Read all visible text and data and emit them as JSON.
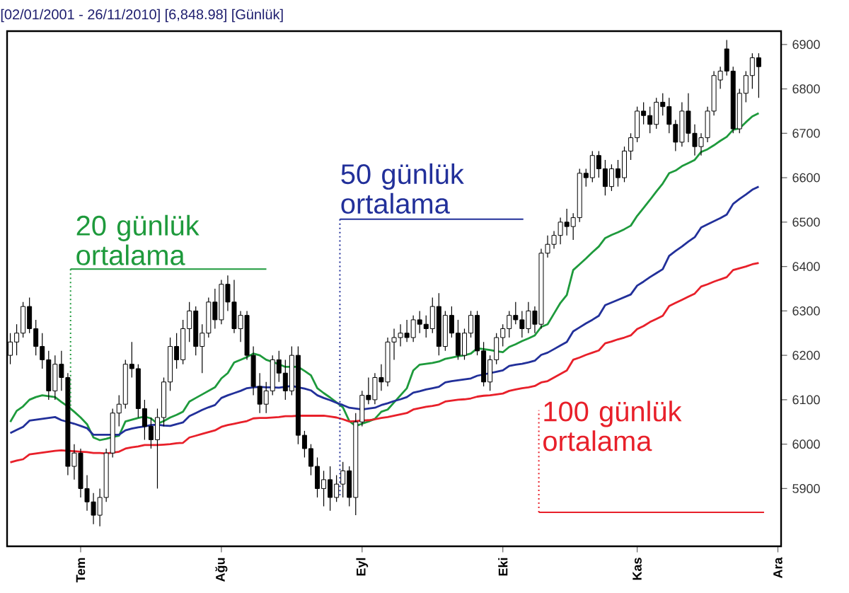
{
  "chart_data": {
    "type": "candlestick",
    "title": "[02/01/2001 - 26/11/2010] [6,848.98] [Günlük]",
    "categories": [
      null,
      null,
      null,
      null,
      null,
      null,
      null,
      null,
      null,
      null,
      null,
      "Tem",
      null,
      null,
      null,
      null,
      null,
      null,
      null,
      null,
      null,
      null,
      null,
      null,
      null,
      null,
      null,
      null,
      null,
      null,
      null,
      null,
      null,
      "Ağu",
      null,
      null,
      null,
      null,
      null,
      null,
      null,
      null,
      null,
      null,
      null,
      null,
      null,
      null,
      null,
      null,
      null,
      null,
      null,
      null,
      null,
      "Eyl",
      null,
      null,
      null,
      null,
      null,
      null,
      null,
      null,
      null,
      null,
      null,
      null,
      null,
      null,
      null,
      null,
      null,
      null,
      null,
      null,
      null,
      "Eki",
      null,
      null,
      null,
      null,
      null,
      null,
      null,
      null,
      null,
      null,
      null,
      null,
      null,
      null,
      null,
      null,
      null,
      null,
      null,
      null,
      "Kas",
      null,
      null,
      null,
      null,
      null,
      null,
      null,
      null,
      null,
      null,
      null,
      null,
      null,
      null,
      null,
      null,
      null,
      null,
      null,
      null,
      null,
      "Ara"
    ],
    "ohlc": [
      [
        6200,
        6250,
        6180,
        6230
      ],
      [
        6230,
        6270,
        6200,
        6250
      ],
      [
        6250,
        6320,
        6240,
        6310
      ],
      [
        6310,
        6330,
        6250,
        6260
      ],
      [
        6260,
        6280,
        6200,
        6220
      ],
      [
        6220,
        6250,
        6170,
        6190
      ],
      [
        6190,
        6210,
        6100,
        6120
      ],
      [
        6120,
        6200,
        6100,
        6180
      ],
      [
        6180,
        6210,
        6120,
        6150
      ],
      [
        6150,
        6160,
        5930,
        5950
      ],
      [
        5950,
        6000,
        5920,
        5980
      ],
      [
        5980,
        5990,
        5880,
        5900
      ],
      [
        5900,
        5930,
        5850,
        5870
      ],
      [
        5870,
        5890,
        5820,
        5840
      ],
      [
        5840,
        5900,
        5815,
        5880
      ],
      [
        5880,
        5990,
        5870,
        5980
      ],
      [
        5980,
        6080,
        5970,
        6070
      ],
      [
        6070,
        6110,
        6040,
        6090
      ],
      [
        6090,
        6190,
        6080,
        6180
      ],
      [
        6180,
        6230,
        6150,
        6170
      ],
      [
        6170,
        6180,
        6060,
        6080
      ],
      [
        6080,
        6100,
        6010,
        6040
      ],
      [
        6040,
        6060,
        5990,
        6010
      ],
      [
        6010,
        6080,
        5900,
        6060
      ],
      [
        6060,
        6150,
        6040,
        6140
      ],
      [
        6140,
        6240,
        6120,
        6220
      ],
      [
        6220,
        6250,
        6170,
        6190
      ],
      [
        6190,
        6280,
        6180,
        6260
      ],
      [
        6260,
        6320,
        6230,
        6300
      ],
      [
        6300,
        6310,
        6200,
        6220
      ],
      [
        6220,
        6270,
        6160,
        6250
      ],
      [
        6250,
        6330,
        6240,
        6320
      ],
      [
        6320,
        6350,
        6260,
        6280
      ],
      [
        6280,
        6370,
        6270,
        6360
      ],
      [
        6360,
        6380,
        6300,
        6320
      ],
      [
        6320,
        6370,
        6250,
        6260
      ],
      [
        6260,
        6300,
        6230,
        6290
      ],
      [
        6290,
        6300,
        6190,
        6200
      ],
      [
        6200,
        6220,
        6110,
        6130
      ],
      [
        6130,
        6160,
        6070,
        6090
      ],
      [
        6090,
        6140,
        6070,
        6120
      ],
      [
        6120,
        6200,
        6110,
        6190
      ],
      [
        6190,
        6210,
        6140,
        6160
      ],
      [
        6160,
        6190,
        6100,
        6120
      ],
      [
        6120,
        6220,
        6110,
        6200
      ],
      [
        6200,
        6220,
        6000,
        6020
      ],
      [
        6020,
        6030,
        5970,
        5990
      ],
      [
        5990,
        6000,
        5930,
        5950
      ],
      [
        5950,
        5970,
        5880,
        5900
      ],
      [
        5900,
        5940,
        5860,
        5920
      ],
      [
        5920,
        5950,
        5850,
        5880
      ],
      [
        5880,
        5930,
        5870,
        5910
      ],
      [
        5910,
        5960,
        5880,
        5940
      ],
      [
        5940,
        5950,
        5860,
        5880
      ],
      [
        5880,
        6070,
        5840,
        6050
      ],
      [
        6050,
        6120,
        6040,
        6110
      ],
      [
        6110,
        6150,
        6090,
        6100
      ],
      [
        6100,
        6160,
        6090,
        6150
      ],
      [
        6150,
        6180,
        6120,
        6140
      ],
      [
        6140,
        6240,
        6130,
        6230
      ],
      [
        6230,
        6260,
        6190,
        6240
      ],
      [
        6240,
        6270,
        6220,
        6250
      ],
      [
        6250,
        6280,
        6230,
        6240
      ],
      [
        6240,
        6290,
        6230,
        6280
      ],
      [
        6280,
        6300,
        6250,
        6270
      ],
      [
        6270,
        6290,
        6240,
        6260
      ],
      [
        6260,
        6330,
        6250,
        6310
      ],
      [
        6310,
        6340,
        6200,
        6220
      ],
      [
        6220,
        6300,
        6210,
        6290
      ],
      [
        6290,
        6310,
        6240,
        6250
      ],
      [
        6250,
        6280,
        6190,
        6200
      ],
      [
        6200,
        6260,
        6190,
        6250
      ],
      [
        6250,
        6300,
        6240,
        6290
      ],
      [
        6290,
        6300,
        6200,
        6210
      ],
      [
        6210,
        6230,
        6130,
        6140
      ],
      [
        6140,
        6200,
        6120,
        6190
      ],
      [
        6190,
        6250,
        6180,
        6240
      ],
      [
        6240,
        6270,
        6220,
        6260
      ],
      [
        6260,
        6300,
        6240,
        6290
      ],
      [
        6290,
        6320,
        6270,
        6280
      ],
      [
        6280,
        6300,
        6240,
        6260
      ],
      [
        6260,
        6320,
        6250,
        6300
      ],
      [
        6300,
        6310,
        6250,
        6270
      ],
      [
        6270,
        6440,
        6260,
        6430
      ],
      [
        6430,
        6470,
        6420,
        6450
      ],
      [
        6450,
        6480,
        6440,
        6470
      ],
      [
        6470,
        6510,
        6450,
        6500
      ],
      [
        6500,
        6530,
        6470,
        6490
      ],
      [
        6490,
        6520,
        6460,
        6510
      ],
      [
        6510,
        6620,
        6500,
        6610
      ],
      [
        6610,
        6620,
        6580,
        6600
      ],
      [
        6600,
        6660,
        6590,
        6650
      ],
      [
        6650,
        6660,
        6600,
        6620
      ],
      [
        6620,
        6640,
        6560,
        6580
      ],
      [
        6580,
        6630,
        6570,
        6620
      ],
      [
        6620,
        6640,
        6580,
        6600
      ],
      [
        6600,
        6670,
        6590,
        6660
      ],
      [
        6660,
        6700,
        6640,
        6690
      ],
      [
        6690,
        6760,
        6680,
        6750
      ],
      [
        6750,
        6770,
        6720,
        6740
      ],
      [
        6740,
        6760,
        6700,
        6720
      ],
      [
        6720,
        6780,
        6710,
        6770
      ],
      [
        6770,
        6790,
        6740,
        6760
      ],
      [
        6760,
        6780,
        6700,
        6720
      ],
      [
        6720,
        6730,
        6660,
        6680
      ],
      [
        6680,
        6770,
        6670,
        6750
      ],
      [
        6750,
        6790,
        6680,
        6700
      ],
      [
        6700,
        6720,
        6650,
        6670
      ],
      [
        6670,
        6700,
        6650,
        6690
      ],
      [
        6690,
        6760,
        6680,
        6750
      ],
      [
        6750,
        6840,
        6740,
        6830
      ],
      [
        6820,
        6850,
        6800,
        6840
      ],
      [
        6890,
        6910,
        6830,
        6840
      ],
      [
        6840,
        6850,
        6700,
        6710
      ],
      [
        6710,
        6800,
        6700,
        6790
      ],
      [
        6790,
        6840,
        6770,
        6830
      ],
      [
        6830,
        6880,
        6800,
        6870
      ],
      [
        6870,
        6880,
        6780,
        6850
      ],
      null,
      null,
      null
    ],
    "series": [
      {
        "name": "20 günlük ortalama",
        "type": "line",
        "color": "#1e9a3c",
        "values": [
          6050,
          6075,
          6085,
          6100,
          6106,
          6110,
          6108,
          6106,
          6095,
          6085,
          6073,
          6060,
          6045,
          6015,
          6009,
          6012,
          6016,
          6019,
          6051,
          6055,
          6059,
          6062,
          6058,
          6046,
          6052,
          6060,
          6066,
          6073,
          6096,
          6104,
          6112,
          6120,
          6128,
          6148,
          6160,
          6184,
          6190,
          6196,
          6204,
          6200,
          6190,
          6185,
          6180,
          6174,
          6174,
          6174,
          6165,
          6155,
          6126,
          6115,
          6105,
          6094,
          6083,
          6052,
          6041,
          6046,
          6051,
          6057,
          6073,
          6078,
          6094,
          6110,
          6126,
          6166,
          6179,
          6181,
          6183,
          6186,
          6192,
          6195,
          6198,
          6200,
          6204,
          6216,
          6214,
          6212,
          6209,
          6207,
          6219,
          6225,
          6232,
          6238,
          6245,
          6264,
          6270,
          6294,
          6318,
          6336,
          6392,
          6405,
          6418,
          6432,
          6445,
          6464,
          6471,
          6477,
          6484,
          6492,
          6514,
          6532,
          6550,
          6569,
          6587,
          6610,
          6616,
          6626,
          6633,
          6640,
          6658,
          6664,
          6673,
          6683,
          6692,
          6708,
          6711,
          6725,
          6738,
          6745,
          null,
          null,
          null
        ]
      },
      {
        "name": "50 günlük ortalama",
        "type": "line",
        "color": "#22309a",
        "values": [
          6025,
          6032,
          6039,
          6053,
          6055,
          6057,
          6059,
          6061,
          6054,
          6050,
          6046,
          6041,
          6036,
          6021,
          6021,
          6021,
          6021,
          6021,
          6031,
          6035,
          6038,
          6040,
          6043,
          6044,
          6042,
          6041,
          6045,
          6049,
          6063,
          6070,
          6077,
          6083,
          6088,
          6104,
          6110,
          6115,
          6120,
          6126,
          6128,
          6129,
          6128,
          6128,
          6127,
          6129,
          6131,
          6128,
          6125,
          6121,
          6110,
          6104,
          6099,
          6093,
          6088,
          6082,
          6080,
          6078,
          6080,
          6082,
          6088,
          6092,
          6097,
          6101,
          6106,
          6116,
          6119,
          6123,
          6126,
          6129,
          6139,
          6142,
          6144,
          6146,
          6148,
          6154,
          6157,
          6160,
          6163,
          6166,
          6176,
          6179,
          6181,
          6184,
          6188,
          6201,
          6206,
          6214,
          6222,
          6230,
          6254,
          6263,
          6272,
          6280,
          6289,
          6313,
          6319,
          6325,
          6331,
          6337,
          6357,
          6366,
          6376,
          6385,
          6394,
          6424,
          6435,
          6445,
          6456,
          6466,
          6488,
          6495,
          6502,
          6509,
          6517,
          6541,
          6552,
          6562,
          6573,
          6580,
          null,
          null,
          null
        ]
      },
      {
        "name": "100 günlük ortalama",
        "type": "line",
        "color": "#e8202a",
        "values": [
          5959,
          5963,
          5966,
          5977,
          5979,
          5981,
          5983,
          5985,
          5986,
          5985,
          5984,
          5983,
          5982,
          5980,
          5980,
          5979,
          5981,
          5983,
          5990,
          5993,
          5995,
          5998,
          5998,
          5998,
          5999,
          6000,
          6002,
          6003,
          6015,
          6019,
          6023,
          6027,
          6031,
          6039,
          6043,
          6046,
          6049,
          6052,
          6058,
          6059,
          6059,
          6060,
          6061,
          6063,
          6063,
          6064,
          6064,
          6064,
          6064,
          6064,
          6062,
          6060,
          6056,
          6051,
          6052,
          6053,
          6054,
          6056,
          6059,
          6061,
          6064,
          6067,
          6070,
          6078,
          6081,
          6084,
          6086,
          6089,
          6096,
          6098,
          6100,
          6101,
          6103,
          6107,
          6109,
          6110,
          6112,
          6114,
          6120,
          6123,
          6126,
          6128,
          6131,
          6139,
          6142,
          6150,
          6158,
          6166,
          6190,
          6195,
          6201,
          6206,
          6211,
          6227,
          6231,
          6236,
          6240,
          6245,
          6259,
          6266,
          6275,
          6282,
          6289,
          6311,
          6318,
          6325,
          6332,
          6339,
          6355,
          6360,
          6366,
          6371,
          6376,
          6392,
          6396,
          6400,
          6405,
          6408,
          null,
          null,
          null
        ]
      }
    ],
    "ylim": [
      5770,
      6930
    ],
    "yticks": [
      5900,
      6000,
      6100,
      6200,
      6300,
      6400,
      6500,
      6600,
      6700,
      6800,
      6900
    ]
  }
}
